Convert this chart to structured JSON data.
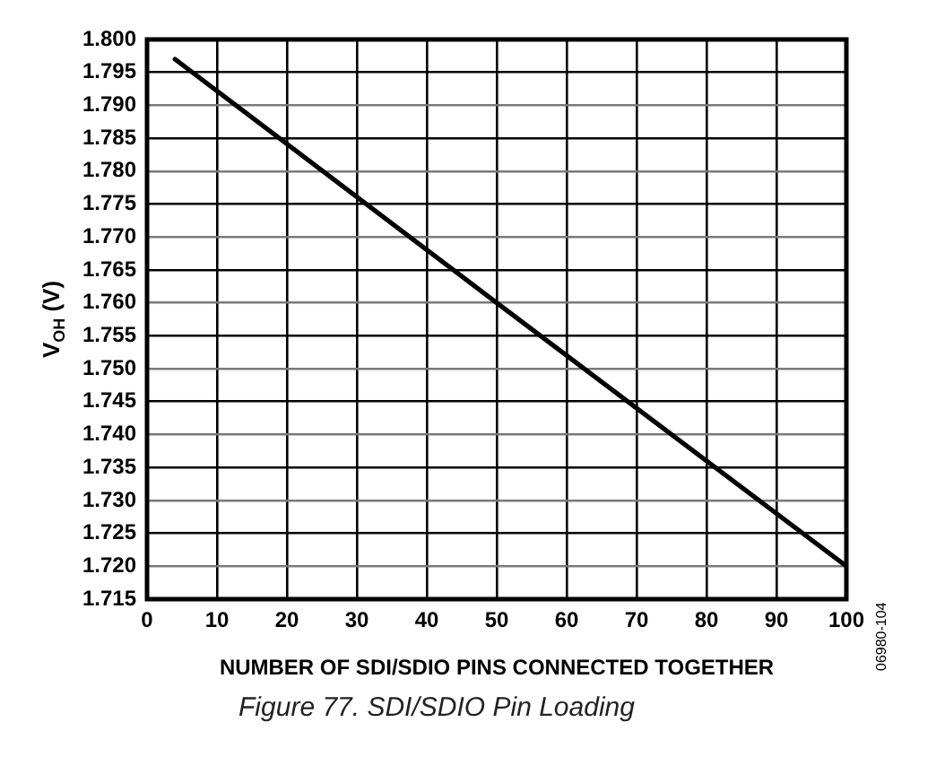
{
  "chart_data": {
    "type": "line",
    "xlabel": "NUMBER OF SDI/SDIO PINS CONNECTED TOGETHER",
    "ylabel": "V$_{OH}$ (V)",
    "x": [
      4,
      50,
      100
    ],
    "series": [
      {
        "color": "#000000",
        "values": [
          1.797,
          1.76,
          1.72
        ]
      }
    ],
    "xlim": [
      0,
      100
    ],
    "xticks": [
      0,
      10,
      20,
      30,
      40,
      50,
      60,
      70,
      80,
      90,
      100
    ],
    "ylim": [
      1.715,
      1.8
    ],
    "yticks": [
      1.715,
      {
        "value": 1.72,
        "label": "1.720"
      },
      1.725,
      {
        "value": 1.73,
        "label": "1.730"
      },
      1.735,
      {
        "value": 1.74,
        "label": "1.740"
      },
      1.745,
      {
        "value": 1.75,
        "label": "1.750"
      },
      1.755,
      {
        "value": 1.76,
        "label": "1.760"
      },
      1.765,
      {
        "value": 1.77,
        "label": "1.770"
      },
      1.775,
      {
        "value": 1.78,
        "label": "1.780"
      },
      1.785,
      {
        "value": 1.79,
        "label": "1.790"
      },
      1.795,
      {
        "value": 1.8,
        "label": "1.800"
      }
    ],
    "grid": true,
    "legend": false,
    "marker": "none",
    "line_style": "solid",
    "annotations": [
      "Figure 77. SDI/SDIO Pin Loading",
      "06980-104"
    ]
  }
}
